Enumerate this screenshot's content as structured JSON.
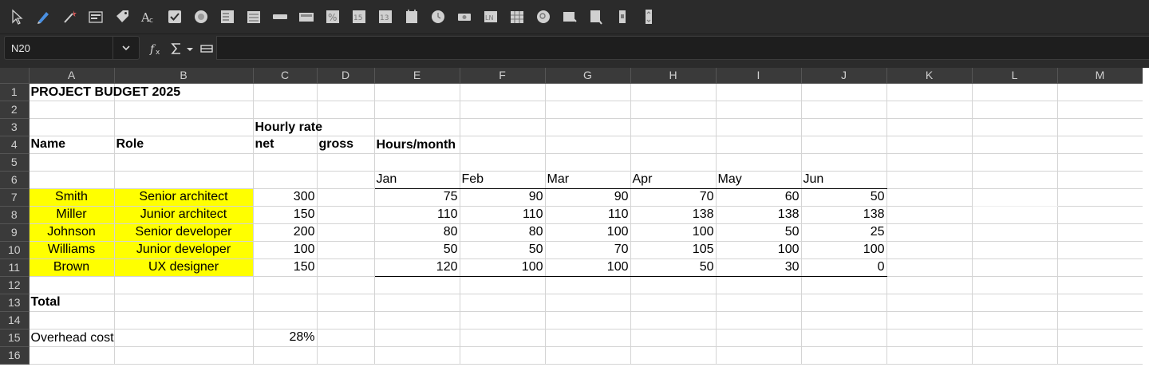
{
  "toolbar": {
    "icons": [
      "select-pointer-icon",
      "pen-icon",
      "magic-wand-icon",
      "form-control-icon",
      "tag-icon",
      "text-style-icon",
      "checkbox-icon",
      "radio-button-icon",
      "list-box-icon",
      "combo-box-icon",
      "push-button-icon",
      "label-field-icon",
      "formatted-field-icon",
      "numeric-field-icon",
      "numeric-field-2-icon",
      "date-field-icon",
      "time-field-icon",
      "image-button-icon",
      "navigation-bar-icon",
      "table-control-icon",
      "scrollbar-icon",
      "spin-button-icon",
      "chart-icon",
      "vertical-scroll-icon",
      "vertical-spin-icon"
    ]
  },
  "formula_bar": {
    "name_box": "N20",
    "formula": ""
  },
  "columns": [
    "A",
    "B",
    "C",
    "D",
    "E",
    "F",
    "G",
    "H",
    "I",
    "J",
    "K",
    "L",
    "M"
  ],
  "rows": [
    {
      "n": "1",
      "cells": {
        "A": "PROJECT BUDGET 2025"
      }
    },
    {
      "n": "2",
      "cells": {}
    },
    {
      "n": "3",
      "cells": {
        "C": "Hourly rate"
      }
    },
    {
      "n": "4",
      "cells": {
        "A": "Name",
        "B": "Role",
        "C": "net",
        "D": "gross",
        "E": "Hours/month"
      }
    },
    {
      "n": "5",
      "cells": {}
    },
    {
      "n": "6",
      "cells": {
        "E": "Jan",
        "F": "Feb",
        "G": "Mar",
        "H": "Apr",
        "I": "May",
        "J": "Jun"
      }
    },
    {
      "n": "7",
      "cells": {
        "A": "Smith",
        "B": "Senior architect",
        "C": "300",
        "E": "75",
        "F": "90",
        "G": "90",
        "H": "70",
        "I": "60",
        "J": "50"
      }
    },
    {
      "n": "8",
      "cells": {
        "A": "Miller",
        "B": "Junior architect",
        "C": "150",
        "E": "110",
        "F": "110",
        "G": "110",
        "H": "138",
        "I": "138",
        "J": "138"
      }
    },
    {
      "n": "9",
      "cells": {
        "A": "Johnson",
        "B": "Senior developer",
        "C": "200",
        "E": "80",
        "F": "80",
        "G": "100",
        "H": "100",
        "I": "50",
        "J": "25"
      }
    },
    {
      "n": "10",
      "cells": {
        "A": "Williams",
        "B": "Junior developer",
        "C": "100",
        "E": "50",
        "F": "50",
        "G": "70",
        "H": "105",
        "I": "100",
        "J": "100"
      }
    },
    {
      "n": "11",
      "cells": {
        "A": "Brown",
        "B": "UX designer",
        "C": "150",
        "E": "120",
        "F": "100",
        "G": "100",
        "H": "50",
        "I": "30",
        "J": "0"
      }
    },
    {
      "n": "12",
      "cells": {}
    },
    {
      "n": "13",
      "cells": {
        "A": "Total"
      }
    },
    {
      "n": "14",
      "cells": {}
    },
    {
      "n": "15",
      "cells": {
        "A": "Overhead cost",
        "C": "28%"
      }
    },
    {
      "n": "16",
      "cells": {}
    }
  ],
  "colors": {
    "highlight": "#ffff00",
    "selected_column_marker": "#2e9b2e"
  }
}
